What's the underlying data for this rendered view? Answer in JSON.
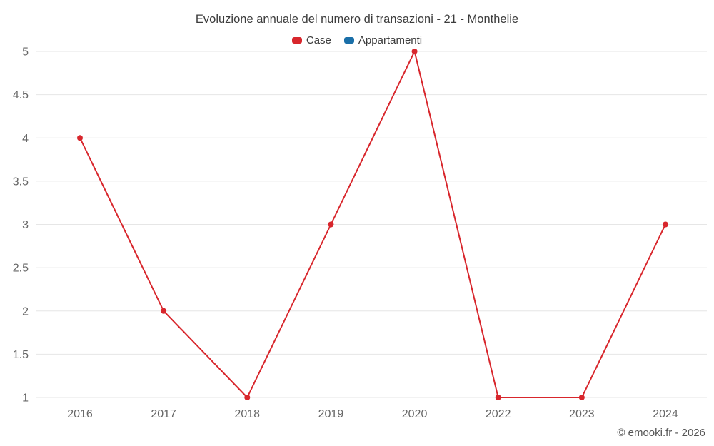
{
  "footer_credit": "© emooki.fr - 2026",
  "chart_data": {
    "type": "line",
    "title": "Evoluzione annuale del numero di transazioni - 21 - Monthelie",
    "categories": [
      "2016",
      "2017",
      "2018",
      "2019",
      "2020",
      "2022",
      "2023",
      "2024"
    ],
    "series": [
      {
        "name": "Case",
        "color": "#d8262c",
        "values": [
          4,
          2,
          1,
          3,
          5,
          1,
          1,
          3
        ]
      },
      {
        "name": "Appartamenti",
        "color": "#1a6fa8",
        "values": []
      }
    ],
    "xlabel": "",
    "ylabel": "",
    "ylim": [
      1,
      5
    ],
    "ytick_step": 0.5,
    "grid": "horizontal",
    "gridline_color": "#e6e6e6",
    "tick_label_color": "#666666",
    "legend_position": "top",
    "marker_radius": 4
  }
}
